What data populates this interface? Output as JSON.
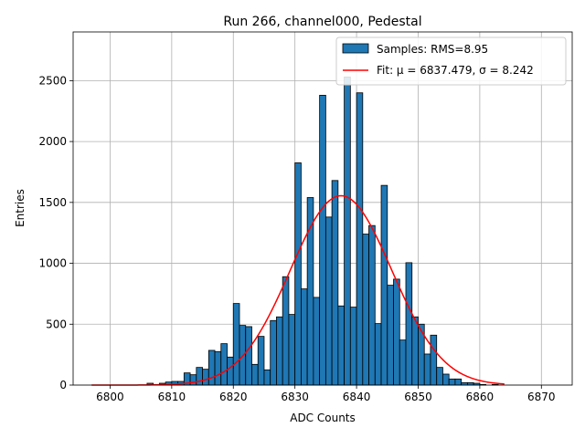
{
  "chart_data": {
    "type": "bar",
    "title": "Run 266, channel000, Pedestal",
    "xlabel": "ADC Counts",
    "ylabel": "Entries",
    "xlim": [
      6794,
      6875
    ],
    "ylim": [
      0,
      2900
    ],
    "xticks": [
      6800,
      6810,
      6820,
      6830,
      6840,
      6850,
      6860,
      6870
    ],
    "yticks": [
      0,
      500,
      1000,
      1500,
      2000,
      2500
    ],
    "grid": true,
    "bin_width": 1,
    "bins": [
      {
        "x": 6797,
        "y": 0
      },
      {
        "x": 6798,
        "y": 0
      },
      {
        "x": 6799,
        "y": 0
      },
      {
        "x": 6800,
        "y": 0
      },
      {
        "x": 6801,
        "y": 0
      },
      {
        "x": 6802,
        "y": 0
      },
      {
        "x": 6803,
        "y": 0
      },
      {
        "x": 6804,
        "y": 0
      },
      {
        "x": 6805,
        "y": 0
      },
      {
        "x": 6806,
        "y": 15
      },
      {
        "x": 6807,
        "y": 5
      },
      {
        "x": 6808,
        "y": 15
      },
      {
        "x": 6809,
        "y": 25
      },
      {
        "x": 6810,
        "y": 30
      },
      {
        "x": 6811,
        "y": 30
      },
      {
        "x": 6812,
        "y": 100
      },
      {
        "x": 6813,
        "y": 85
      },
      {
        "x": 6814,
        "y": 145
      },
      {
        "x": 6815,
        "y": 130
      },
      {
        "x": 6816,
        "y": 285
      },
      {
        "x": 6817,
        "y": 275
      },
      {
        "x": 6818,
        "y": 340
      },
      {
        "x": 6819,
        "y": 230
      },
      {
        "x": 6820,
        "y": 670
      },
      {
        "x": 6821,
        "y": 490
      },
      {
        "x": 6822,
        "y": 480
      },
      {
        "x": 6823,
        "y": 170
      },
      {
        "x": 6824,
        "y": 400
      },
      {
        "x": 6825,
        "y": 125
      },
      {
        "x": 6826,
        "y": 530
      },
      {
        "x": 6827,
        "y": 560
      },
      {
        "x": 6828,
        "y": 890
      },
      {
        "x": 6829,
        "y": 580
      },
      {
        "x": 6830,
        "y": 1825
      },
      {
        "x": 6831,
        "y": 790
      },
      {
        "x": 6832,
        "y": 1540
      },
      {
        "x": 6833,
        "y": 720
      },
      {
        "x": 6834,
        "y": 2380
      },
      {
        "x": 6835,
        "y": 1380
      },
      {
        "x": 6836,
        "y": 1680
      },
      {
        "x": 6837,
        "y": 650
      },
      {
        "x": 6838,
        "y": 2530
      },
      {
        "x": 6839,
        "y": 640
      },
      {
        "x": 6840,
        "y": 2400
      },
      {
        "x": 6841,
        "y": 1240
      },
      {
        "x": 6842,
        "y": 1310
      },
      {
        "x": 6843,
        "y": 505
      },
      {
        "x": 6844,
        "y": 1640
      },
      {
        "x": 6845,
        "y": 820
      },
      {
        "x": 6846,
        "y": 870
      },
      {
        "x": 6847,
        "y": 370
      },
      {
        "x": 6848,
        "y": 1005
      },
      {
        "x": 6849,
        "y": 560
      },
      {
        "x": 6850,
        "y": 500
      },
      {
        "x": 6851,
        "y": 255
      },
      {
        "x": 6852,
        "y": 410
      },
      {
        "x": 6853,
        "y": 145
      },
      {
        "x": 6854,
        "y": 90
      },
      {
        "x": 6855,
        "y": 50
      },
      {
        "x": 6856,
        "y": 50
      },
      {
        "x": 6857,
        "y": 20
      },
      {
        "x": 6858,
        "y": 20
      },
      {
        "x": 6859,
        "y": 15
      },
      {
        "x": 6860,
        "y": 5
      },
      {
        "x": 6861,
        "y": 0
      },
      {
        "x": 6862,
        "y": 5
      },
      {
        "x": 6863,
        "y": 0
      }
    ],
    "fit": {
      "mu": 6837.479,
      "sigma": 8.242,
      "peak": 1555,
      "x_range": [
        6797,
        6864
      ]
    },
    "legend": {
      "location": "upper right",
      "entries": [
        {
          "label": "Samples: RMS=8.95",
          "kind": "bar"
        },
        {
          "label": "Fit: μ = 6837.479, σ = 8.242",
          "kind": "line"
        }
      ]
    },
    "colors": {
      "bar": "#1f77b4",
      "bar_edge": "#000000",
      "fit": "#ff0000",
      "grid": "#b0b0b0"
    }
  }
}
